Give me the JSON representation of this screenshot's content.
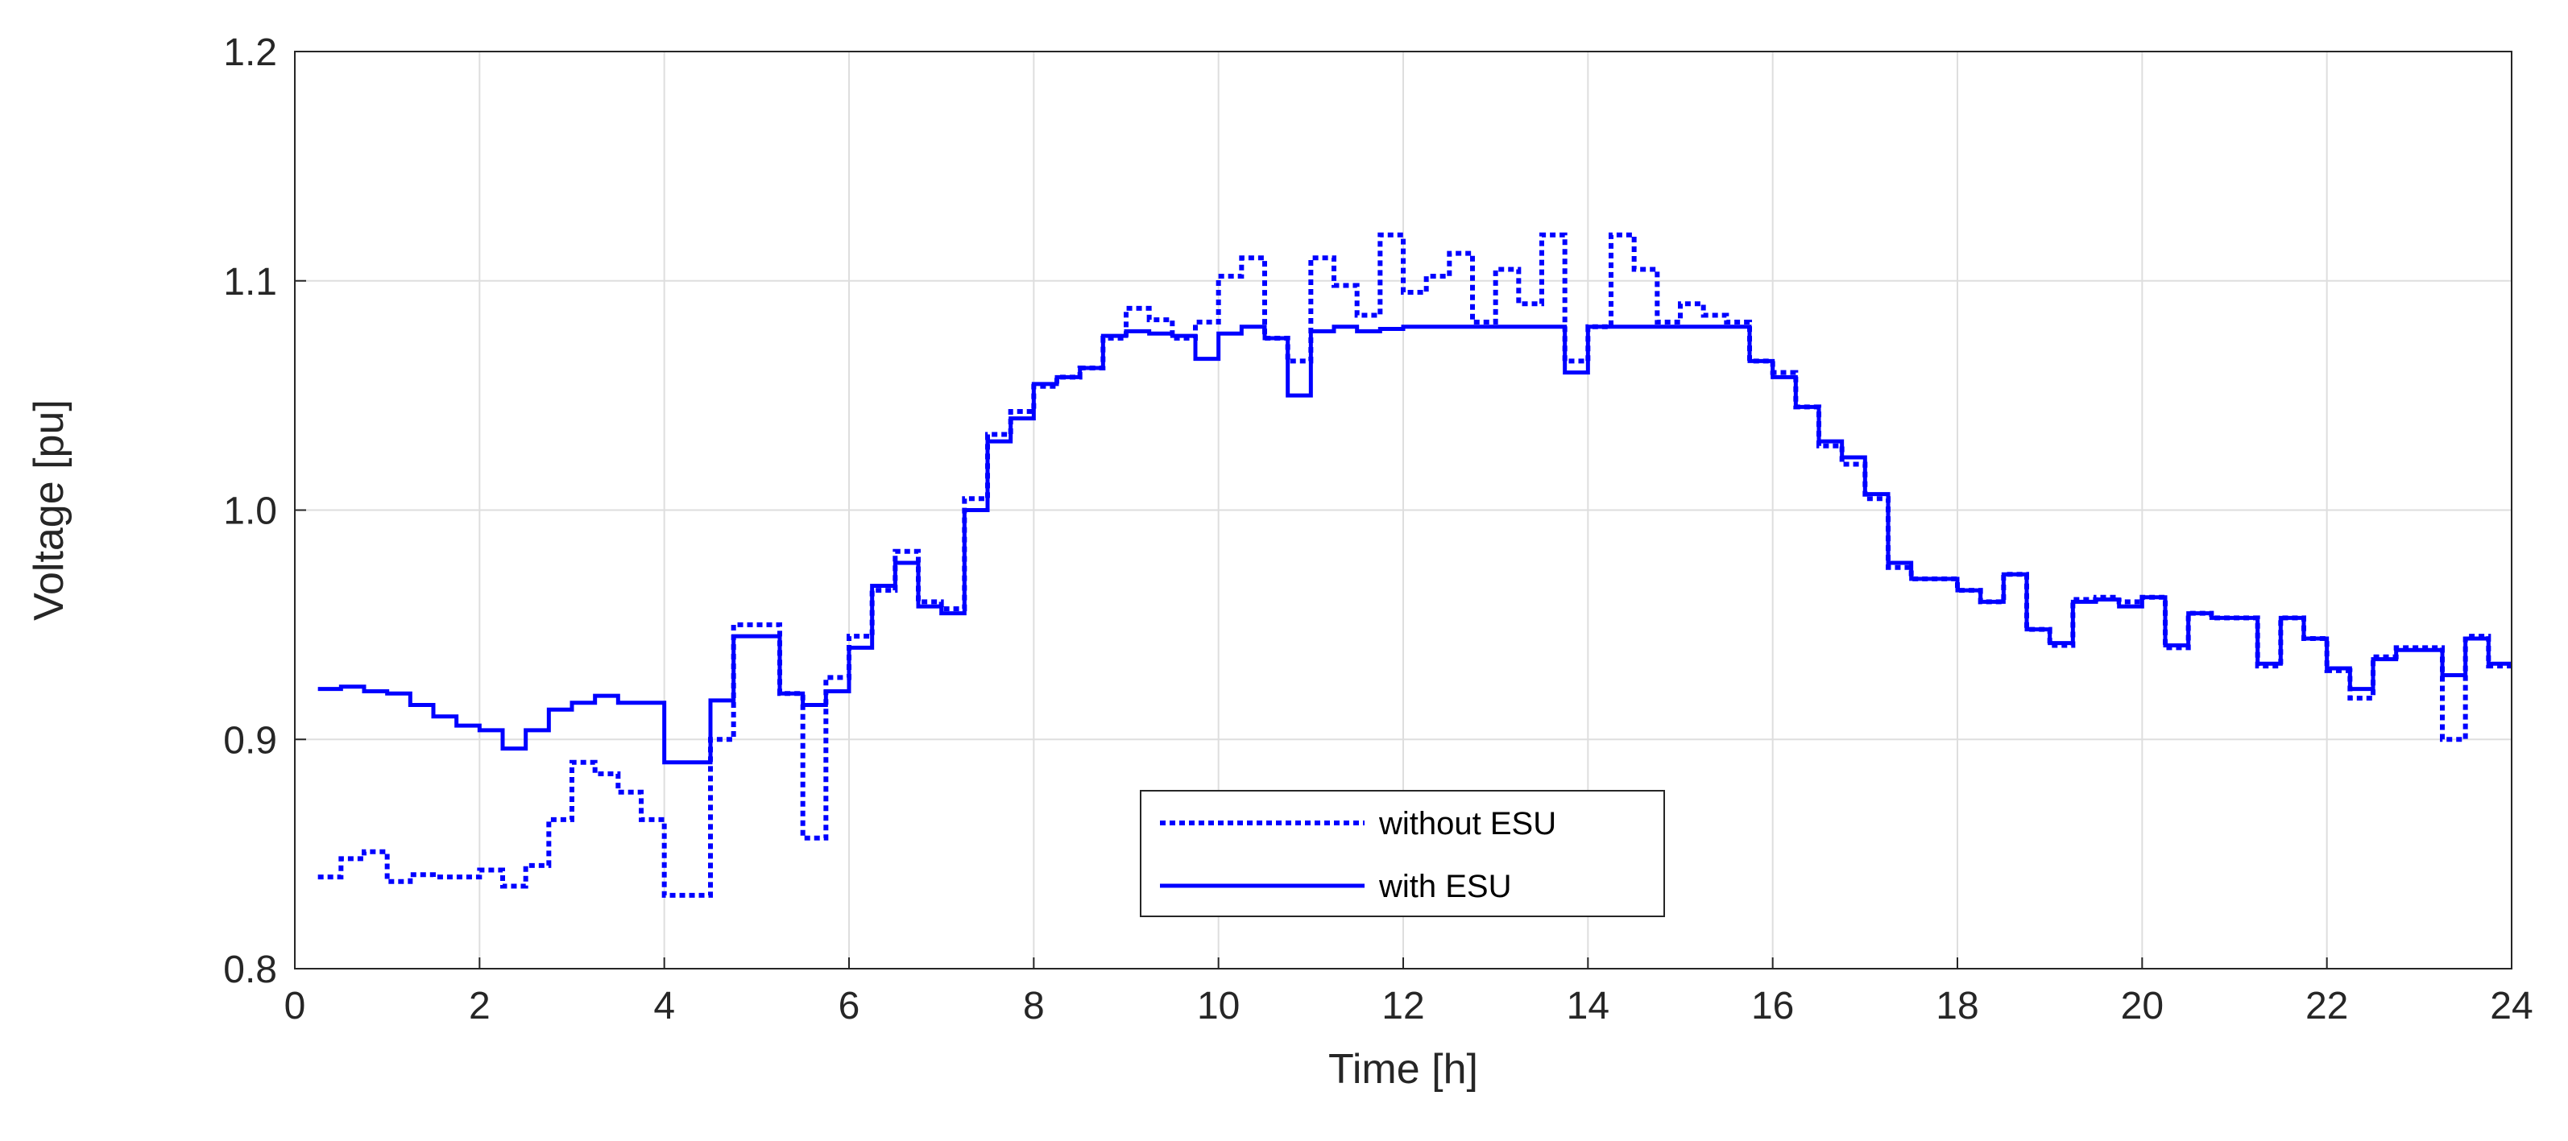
{
  "chart_data": {
    "type": "line",
    "xlabel": "Time [h]",
    "ylabel": "Voltage [pu]",
    "xlim": [
      0,
      24
    ],
    "ylim": [
      0.8,
      1.2
    ],
    "xticks": [
      0,
      2,
      4,
      6,
      8,
      10,
      12,
      14,
      16,
      18,
      20,
      22,
      24
    ],
    "yticks": [
      0.8,
      0.9,
      1.0,
      1.1,
      1.2
    ],
    "xtick_labels": [
      "0",
      "2",
      "4",
      "6",
      "8",
      "10",
      "12",
      "14",
      "16",
      "18",
      "20",
      "22",
      "24"
    ],
    "ytick_labels": [
      "0.8",
      "0.9",
      "1.0",
      "1.1",
      "1.2"
    ],
    "grid": true,
    "legend": {
      "placement": "bottom-center"
    },
    "step": true,
    "series": [
      {
        "name": "without ESU",
        "style": "dotted",
        "color": "#0000ff",
        "x": [
          0.25,
          0.5,
          0.75,
          1.0,
          1.25,
          1.5,
          1.75,
          2.0,
          2.25,
          2.5,
          2.75,
          3.0,
          3.25,
          3.5,
          3.75,
          4.0,
          4.25,
          4.5,
          4.75,
          5.0,
          5.25,
          5.5,
          5.75,
          6.0,
          6.25,
          6.5,
          6.75,
          7.0,
          7.25,
          7.5,
          7.75,
          8.0,
          8.25,
          8.5,
          8.75,
          9.0,
          9.25,
          9.5,
          9.75,
          10.0,
          10.25,
          10.5,
          10.75,
          11.0,
          11.25,
          11.5,
          11.75,
          12.0,
          12.25,
          12.5,
          12.75,
          13.0,
          13.25,
          13.5,
          13.75,
          14.0,
          14.25,
          14.5,
          14.75,
          15.0,
          15.25,
          15.5,
          15.75,
          16.0,
          16.25,
          16.5,
          16.75,
          17.0,
          17.25,
          17.5,
          17.75,
          18.0,
          18.25,
          18.5,
          18.75,
          19.0,
          19.25,
          19.5,
          19.75,
          20.0,
          20.25,
          20.5,
          20.75,
          21.0,
          21.25,
          21.5,
          21.75,
          22.0,
          22.25,
          22.5,
          22.75,
          23.0,
          23.25,
          23.5,
          23.75,
          24.0
        ],
        "y": [
          0.84,
          0.848,
          0.851,
          0.838,
          0.841,
          0.84,
          0.84,
          0.843,
          0.836,
          0.845,
          0.865,
          0.89,
          0.885,
          0.877,
          0.865,
          0.832,
          0.832,
          0.9,
          0.95,
          0.95,
          0.92,
          0.857,
          0.927,
          0.945,
          0.965,
          0.982,
          0.96,
          0.957,
          1.005,
          1.033,
          1.043,
          1.054,
          1.058,
          1.062,
          1.075,
          1.088,
          1.083,
          1.075,
          1.082,
          1.102,
          1.11,
          1.075,
          1.065,
          1.11,
          1.098,
          1.085,
          1.12,
          1.095,
          1.102,
          1.112,
          1.082,
          1.105,
          1.09,
          1.12,
          1.065,
          1.08,
          1.12,
          1.105,
          1.082,
          1.09,
          1.085,
          1.082,
          1.065,
          1.06,
          1.045,
          1.028,
          1.02,
          1.005,
          0.975,
          0.97,
          0.97,
          0.965,
          0.96,
          0.972,
          0.948,
          0.941,
          0.961,
          0.962,
          0.96,
          0.962,
          0.94,
          0.955,
          0.953,
          0.953,
          0.932,
          0.953,
          0.944,
          0.93,
          0.918,
          0.936,
          0.94,
          0.94,
          0.9,
          0.945,
          0.932,
          0.932
        ]
      },
      {
        "name": "with ESU",
        "style": "solid",
        "color": "#0000ff",
        "x": [
          0.25,
          0.5,
          0.75,
          1.0,
          1.25,
          1.5,
          1.75,
          2.0,
          2.25,
          2.5,
          2.75,
          3.0,
          3.25,
          3.5,
          3.75,
          4.0,
          4.25,
          4.5,
          4.75,
          5.0,
          5.25,
          5.5,
          5.75,
          6.0,
          6.25,
          6.5,
          6.75,
          7.0,
          7.25,
          7.5,
          7.75,
          8.0,
          8.25,
          8.5,
          8.75,
          9.0,
          9.25,
          9.5,
          9.75,
          10.0,
          10.25,
          10.5,
          10.75,
          11.0,
          11.25,
          11.5,
          11.75,
          12.0,
          12.25,
          12.5,
          12.75,
          13.0,
          13.25,
          13.5,
          13.75,
          14.0,
          14.25,
          14.5,
          14.75,
          15.0,
          15.25,
          15.5,
          15.75,
          16.0,
          16.25,
          16.5,
          16.75,
          17.0,
          17.25,
          17.5,
          17.75,
          18.0,
          18.25,
          18.5,
          18.75,
          19.0,
          19.25,
          19.5,
          19.75,
          20.0,
          20.25,
          20.5,
          20.75,
          21.0,
          21.25,
          21.5,
          21.75,
          22.0,
          22.25,
          22.5,
          22.75,
          23.0,
          23.25,
          23.5,
          23.75,
          24.0
        ],
        "y": [
          0.922,
          0.923,
          0.921,
          0.92,
          0.915,
          0.91,
          0.906,
          0.904,
          0.896,
          0.904,
          0.913,
          0.916,
          0.919,
          0.916,
          0.916,
          0.89,
          0.89,
          0.917,
          0.945,
          0.945,
          0.92,
          0.915,
          0.921,
          0.94,
          0.967,
          0.977,
          0.958,
          0.955,
          1.0,
          1.03,
          1.04,
          1.055,
          1.058,
          1.062,
          1.076,
          1.078,
          1.077,
          1.076,
          1.066,
          1.077,
          1.08,
          1.075,
          1.05,
          1.078,
          1.08,
          1.078,
          1.079,
          1.08,
          1.08,
          1.08,
          1.08,
          1.08,
          1.08,
          1.08,
          1.06,
          1.08,
          1.08,
          1.08,
          1.08,
          1.08,
          1.08,
          1.08,
          1.065,
          1.058,
          1.045,
          1.03,
          1.023,
          1.007,
          0.977,
          0.97,
          0.97,
          0.965,
          0.96,
          0.972,
          0.948,
          0.942,
          0.96,
          0.961,
          0.958,
          0.962,
          0.941,
          0.955,
          0.953,
          0.953,
          0.933,
          0.953,
          0.944,
          0.931,
          0.922,
          0.935,
          0.939,
          0.939,
          0.928,
          0.944,
          0.933,
          0.933
        ]
      }
    ]
  }
}
